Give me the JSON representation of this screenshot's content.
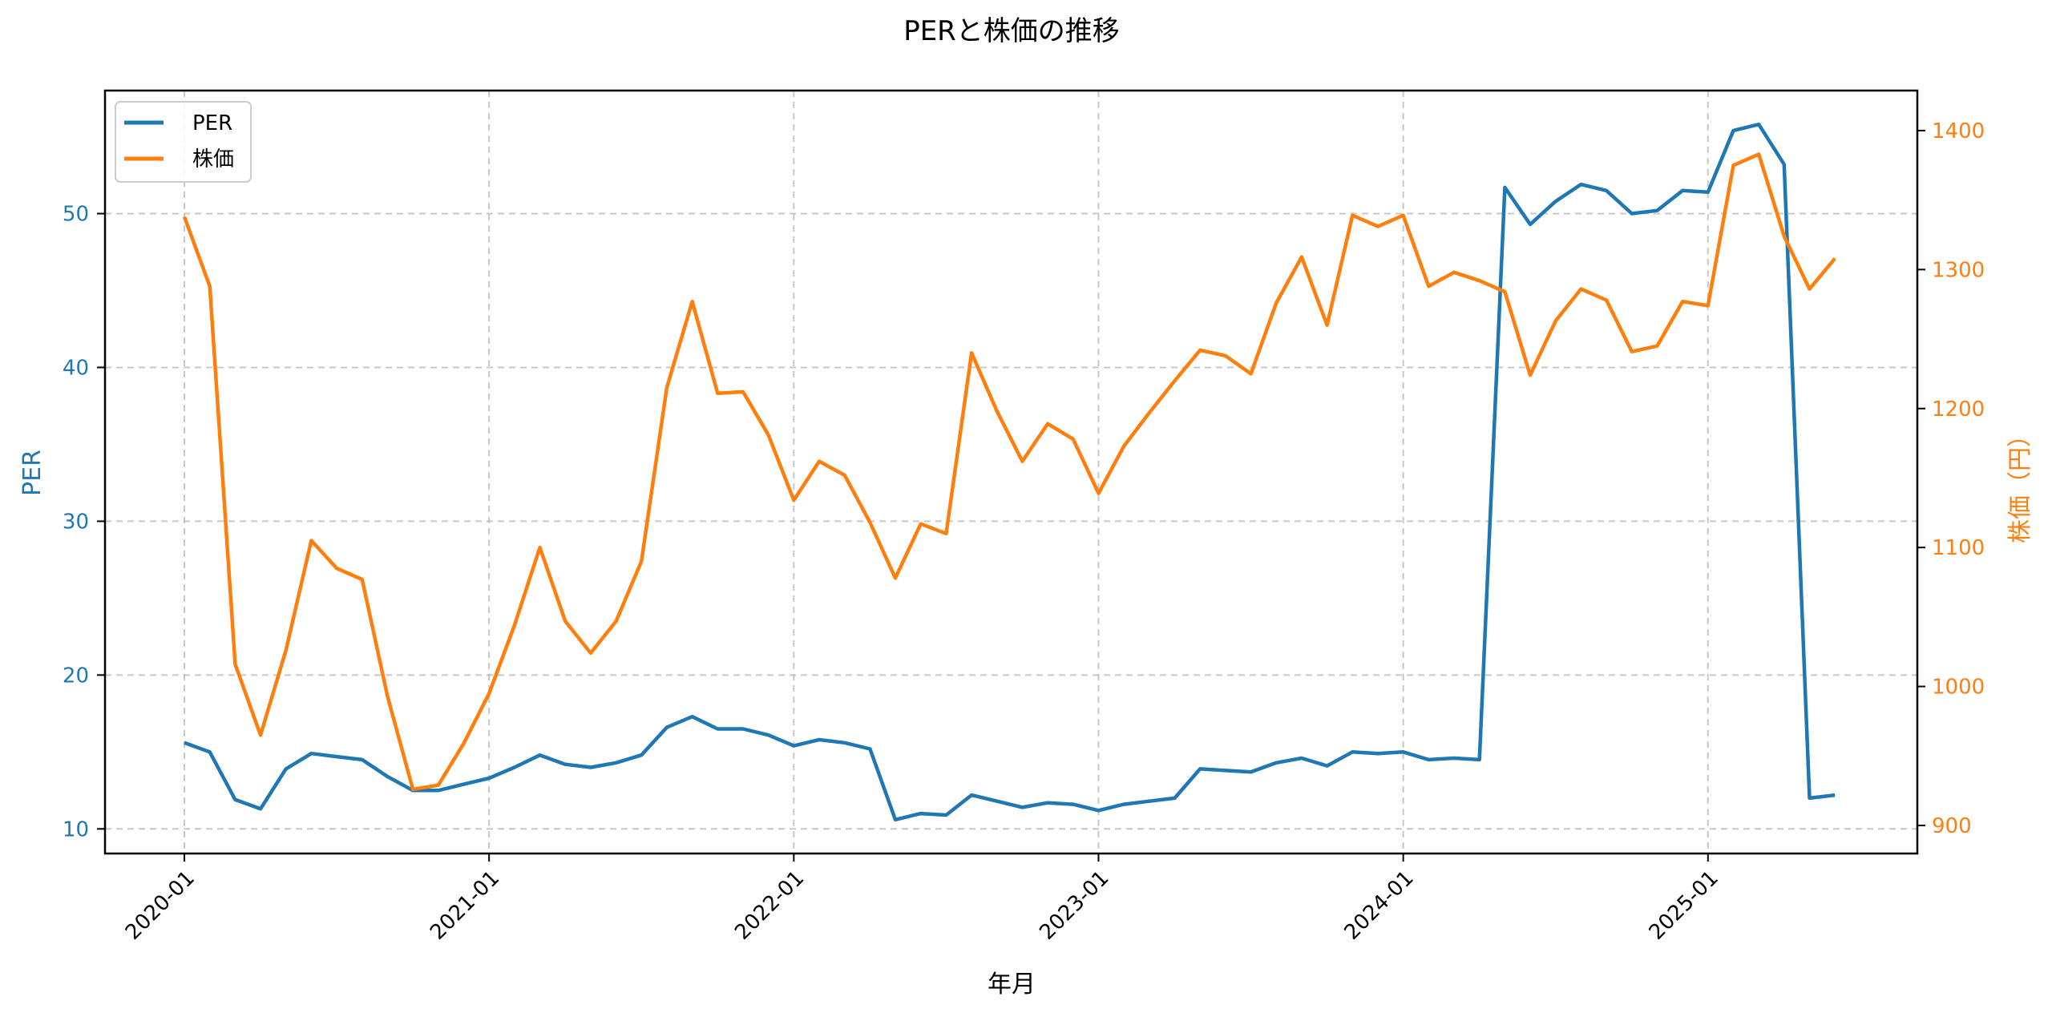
{
  "chart_data": {
    "type": "line",
    "title": "PERと株価の推移",
    "xlabel": "年月",
    "ylabel_left": "PER",
    "ylabel_right": "株価（円）",
    "x_start": "2020-01",
    "x_ticks": [
      "2020-01",
      "2021-01",
      "2022-01",
      "2023-01",
      "2024-01",
      "2025-01"
    ],
    "y_left_ticks": [
      10,
      20,
      30,
      40,
      50
    ],
    "y_right_ticks": [
      900,
      1000,
      1100,
      1200,
      1300,
      1400
    ],
    "ylim_left": [
      8.4,
      58.0
    ],
    "ylim_right": [
      879.8,
      1428.8
    ],
    "grid": true,
    "legend_position": "upper left",
    "x": [
      "2020-01",
      "2020-02",
      "2020-03",
      "2020-04",
      "2020-05",
      "2020-06",
      "2020-07",
      "2020-08",
      "2020-09",
      "2020-10",
      "2020-11",
      "2020-12",
      "2021-01",
      "2021-02",
      "2021-03",
      "2021-04",
      "2021-05",
      "2021-06",
      "2021-07",
      "2021-08",
      "2021-09",
      "2021-10",
      "2021-11",
      "2021-12",
      "2022-01",
      "2022-02",
      "2022-03",
      "2022-04",
      "2022-05",
      "2022-06",
      "2022-07",
      "2022-08",
      "2022-09",
      "2022-10",
      "2022-11",
      "2022-12",
      "2023-01",
      "2023-02",
      "2023-03",
      "2023-04",
      "2023-05",
      "2023-06",
      "2023-07",
      "2023-08",
      "2023-09",
      "2023-10",
      "2023-11",
      "2023-12",
      "2024-01",
      "2024-02",
      "2024-03",
      "2024-04",
      "2024-05",
      "2024-06",
      "2024-07",
      "2024-08",
      "2024-09",
      "2024-10",
      "2024-11",
      "2024-12",
      "2025-01",
      "2025-02",
      "2025-03",
      "2025-04",
      "2025-05",
      "2025-06"
    ],
    "series": [
      {
        "name": "PER",
        "axis": "left",
        "color": "#1f77b4",
        "values": [
          15.6,
          15.0,
          11.9,
          11.3,
          13.9,
          14.9,
          14.7,
          14.5,
          13.4,
          12.5,
          12.5,
          12.9,
          13.3,
          14.0,
          14.8,
          14.2,
          14.0,
          14.3,
          14.8,
          16.6,
          17.3,
          16.5,
          16.5,
          16.1,
          15.4,
          15.8,
          15.6,
          15.2,
          10.6,
          11.0,
          10.9,
          12.2,
          11.8,
          11.4,
          11.7,
          11.6,
          11.2,
          11.6,
          11.8,
          12.0,
          13.9,
          13.8,
          13.7,
          14.3,
          14.6,
          14.1,
          15.0,
          14.9,
          15.0,
          14.5,
          14.6,
          14.5,
          51.7,
          49.3,
          50.8,
          51.9,
          51.5,
          50.0,
          50.2,
          51.5,
          51.4,
          55.4,
          55.8,
          53.2,
          12.0,
          12.2
        ]
      },
      {
        "name": "株価",
        "axis": "right",
        "color": "#ff7f0e",
        "values": [
          1338,
          1288,
          1016,
          965,
          1026,
          1105,
          1085,
          1077,
          993,
          926,
          929,
          959,
          995,
          1044,
          1100,
          1047,
          1024,
          1047,
          1090,
          1215,
          1277,
          1211,
          1212,
          1181,
          1134,
          1162,
          1152,
          1118,
          1078,
          1117,
          1110,
          1240,
          1198,
          1162,
          1189,
          1178,
          1139,
          1173,
          1197,
          1220,
          1242,
          1238,
          1225,
          1276,
          1309,
          1260,
          1339,
          1331,
          1339,
          1288,
          1298,
          1292,
          1284,
          1224,
          1263,
          1286,
          1278,
          1241,
          1245,
          1277,
          1274,
          1375,
          1383,
          1324,
          1286,
          1308
        ]
      }
    ]
  },
  "legend": {
    "items": [
      {
        "label": "PER",
        "color": "#1f77b4"
      },
      {
        "label": "株価",
        "color": "#ff7f0e"
      }
    ]
  }
}
